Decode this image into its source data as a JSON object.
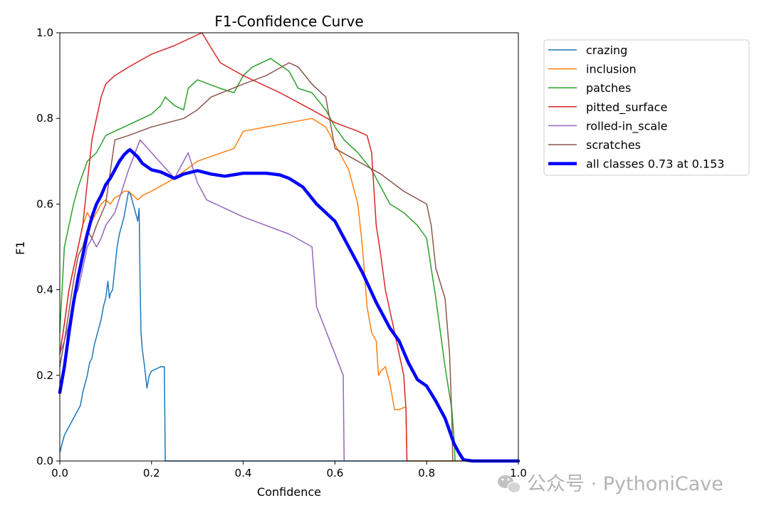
{
  "chart_data": {
    "type": "line",
    "title": "F1-Confidence Curve",
    "xlabel": "Confidence",
    "ylabel": "F1",
    "xlim": [
      0,
      1
    ],
    "ylim": [
      0,
      1
    ],
    "xticks": [
      "0.0",
      "0.2",
      "0.4",
      "0.6",
      "0.8",
      "1.0"
    ],
    "yticks": [
      "0.0",
      "0.2",
      "0.4",
      "0.6",
      "0.8",
      "1.0"
    ],
    "legend_position": "outside-right-top",
    "series": [
      {
        "name": "crazing",
        "color": "#1f77b4",
        "x": [
          0,
          0.005,
          0.01,
          0.02,
          0.03,
          0.04,
          0.045,
          0.05,
          0.055,
          0.06,
          0.065,
          0.07,
          0.075,
          0.08,
          0.085,
          0.09,
          0.095,
          0.1,
          0.105,
          0.108,
          0.11,
          0.115,
          0.12,
          0.125,
          0.13,
          0.135,
          0.14,
          0.145,
          0.15,
          0.155,
          0.16,
          0.165,
          0.17,
          0.173,
          0.175,
          0.177,
          0.18,
          0.185,
          0.19,
          0.195,
          0.2,
          0.21,
          0.22,
          0.228,
          0.23,
          0.3,
          0.5,
          0.7,
          1.0
        ],
        "y": [
          0.02,
          0.04,
          0.06,
          0.08,
          0.1,
          0.12,
          0.13,
          0.16,
          0.18,
          0.2,
          0.23,
          0.24,
          0.27,
          0.29,
          0.31,
          0.33,
          0.36,
          0.38,
          0.42,
          0.38,
          0.39,
          0.4,
          0.45,
          0.5,
          0.53,
          0.55,
          0.57,
          0.6,
          0.63,
          0.62,
          0.6,
          0.58,
          0.56,
          0.59,
          0.42,
          0.3,
          0.26,
          0.22,
          0.17,
          0.2,
          0.21,
          0.215,
          0.22,
          0.22,
          0,
          0,
          0,
          0,
          0
        ]
      },
      {
        "name": "inclusion",
        "color": "#ff7f0e",
        "x": [
          0,
          0.01,
          0.02,
          0.03,
          0.04,
          0.05,
          0.06,
          0.07,
          0.08,
          0.09,
          0.1,
          0.11,
          0.12,
          0.13,
          0.14,
          0.15,
          0.16,
          0.17,
          0.18,
          0.2,
          0.25,
          0.3,
          0.38,
          0.4,
          0.45,
          0.5,
          0.55,
          0.58,
          0.6,
          0.63,
          0.65,
          0.66,
          0.67,
          0.68,
          0.69,
          0.695,
          0.7,
          0.71,
          0.72,
          0.73,
          0.74,
          0.75,
          0.755,
          0.757,
          0.76,
          0.8,
          1.0
        ],
        "y": [
          0.25,
          0.32,
          0.4,
          0.45,
          0.5,
          0.55,
          0.58,
          0.56,
          0.58,
          0.6,
          0.61,
          0.6,
          0.615,
          0.62,
          0.63,
          0.63,
          0.62,
          0.61,
          0.62,
          0.63,
          0.66,
          0.7,
          0.73,
          0.77,
          0.78,
          0.79,
          0.8,
          0.78,
          0.74,
          0.68,
          0.6,
          0.5,
          0.36,
          0.3,
          0.28,
          0.2,
          0.21,
          0.22,
          0.18,
          0.12,
          0.12,
          0.125,
          0.125,
          0,
          0,
          0,
          0
        ]
      },
      {
        "name": "patches",
        "color": "#2ca02c",
        "x": [
          0,
          0.005,
          0.01,
          0.02,
          0.03,
          0.04,
          0.05,
          0.06,
          0.07,
          0.08,
          0.09,
          0.1,
          0.12,
          0.14,
          0.16,
          0.18,
          0.2,
          0.22,
          0.23,
          0.24,
          0.25,
          0.27,
          0.28,
          0.3,
          0.35,
          0.38,
          0.4,
          0.42,
          0.46,
          0.5,
          0.52,
          0.55,
          0.58,
          0.6,
          0.62,
          0.65,
          0.68,
          0.7,
          0.72,
          0.75,
          0.78,
          0.8,
          0.81,
          0.82,
          0.84,
          0.855,
          0.86,
          0.862
        ],
        "y": [
          0.3,
          0.4,
          0.5,
          0.55,
          0.6,
          0.64,
          0.67,
          0.7,
          0.71,
          0.72,
          0.74,
          0.76,
          0.77,
          0.78,
          0.79,
          0.8,
          0.81,
          0.83,
          0.85,
          0.84,
          0.83,
          0.82,
          0.87,
          0.89,
          0.87,
          0.86,
          0.9,
          0.92,
          0.94,
          0.91,
          0.87,
          0.86,
          0.82,
          0.78,
          0.75,
          0.72,
          0.68,
          0.64,
          0.6,
          0.58,
          0.55,
          0.52,
          0.45,
          0.38,
          0.22,
          0.12,
          0.05,
          0
        ]
      },
      {
        "name": "pitted_surface",
        "color": "#d62728",
        "x": [
          0,
          0.01,
          0.02,
          0.03,
          0.04,
          0.05,
          0.06,
          0.07,
          0.08,
          0.09,
          0.1,
          0.12,
          0.15,
          0.2,
          0.25,
          0.31,
          0.35,
          0.4,
          0.48,
          0.55,
          0.6,
          0.65,
          0.67,
          0.68,
          0.69,
          0.7,
          0.71,
          0.72,
          0.74,
          0.75,
          0.755,
          0.757
        ],
        "y": [
          0.25,
          0.32,
          0.4,
          0.45,
          0.5,
          0.55,
          0.65,
          0.75,
          0.8,
          0.85,
          0.88,
          0.9,
          0.92,
          0.95,
          0.97,
          1.0,
          0.93,
          0.9,
          0.86,
          0.82,
          0.79,
          0.77,
          0.76,
          0.72,
          0.55,
          0.48,
          0.4,
          0.35,
          0.25,
          0.2,
          0.12,
          0
        ]
      },
      {
        "name": "rolled-in_scale",
        "color": "#9467bd",
        "x": [
          0,
          0.01,
          0.02,
          0.03,
          0.04,
          0.05,
          0.06,
          0.07,
          0.08,
          0.09,
          0.1,
          0.12,
          0.15,
          0.175,
          0.2,
          0.25,
          0.28,
          0.3,
          0.32,
          0.4,
          0.5,
          0.55,
          0.56,
          0.6,
          0.618,
          0.62
        ],
        "y": [
          0.25,
          0.28,
          0.32,
          0.38,
          0.4,
          0.45,
          0.5,
          0.52,
          0.5,
          0.52,
          0.55,
          0.58,
          0.68,
          0.75,
          0.72,
          0.66,
          0.72,
          0.65,
          0.61,
          0.57,
          0.53,
          0.5,
          0.36,
          0.25,
          0.2,
          0
        ]
      },
      {
        "name": "scratches",
        "color": "#8c564b",
        "x": [
          0,
          0.01,
          0.02,
          0.03,
          0.04,
          0.05,
          0.06,
          0.07,
          0.08,
          0.1,
          0.12,
          0.15,
          0.2,
          0.27,
          0.3,
          0.33,
          0.4,
          0.45,
          0.5,
          0.52,
          0.55,
          0.58,
          0.6,
          0.65,
          0.7,
          0.75,
          0.8,
          0.81,
          0.82,
          0.84,
          0.85,
          0.855,
          0.857
        ],
        "y": [
          0.22,
          0.28,
          0.35,
          0.42,
          0.48,
          0.5,
          0.54,
          0.52,
          0.55,
          0.6,
          0.75,
          0.76,
          0.78,
          0.8,
          0.82,
          0.85,
          0.88,
          0.9,
          0.93,
          0.92,
          0.88,
          0.85,
          0.73,
          0.7,
          0.67,
          0.63,
          0.6,
          0.55,
          0.45,
          0.38,
          0.25,
          0.1,
          0
        ]
      },
      {
        "name": "all classes 0.73 at 0.153",
        "color": "#0000ff",
        "bold": true,
        "x": [
          0,
          0.01,
          0.02,
          0.03,
          0.04,
          0.05,
          0.06,
          0.07,
          0.08,
          0.09,
          0.1,
          0.11,
          0.12,
          0.13,
          0.14,
          0.15,
          0.153,
          0.16,
          0.17,
          0.18,
          0.2,
          0.22,
          0.25,
          0.27,
          0.3,
          0.33,
          0.36,
          0.4,
          0.45,
          0.48,
          0.5,
          0.53,
          0.56,
          0.6,
          0.63,
          0.66,
          0.69,
          0.7,
          0.72,
          0.74,
          0.76,
          0.78,
          0.8,
          0.82,
          0.84,
          0.85,
          0.86,
          0.87,
          0.88,
          0.9,
          1.0
        ],
        "y": [
          0.16,
          0.22,
          0.3,
          0.37,
          0.43,
          0.48,
          0.53,
          0.57,
          0.6,
          0.62,
          0.645,
          0.66,
          0.68,
          0.7,
          0.715,
          0.725,
          0.727,
          0.72,
          0.71,
          0.695,
          0.68,
          0.675,
          0.66,
          0.67,
          0.678,
          0.67,
          0.665,
          0.672,
          0.672,
          0.668,
          0.66,
          0.64,
          0.6,
          0.56,
          0.5,
          0.44,
          0.37,
          0.35,
          0.31,
          0.28,
          0.23,
          0.19,
          0.175,
          0.14,
          0.1,
          0.07,
          0.04,
          0.02,
          0.003,
          0,
          0
        ]
      }
    ]
  },
  "watermark": {
    "icon": "wechat-icon",
    "text": "公众号 · PythoniCave"
  }
}
